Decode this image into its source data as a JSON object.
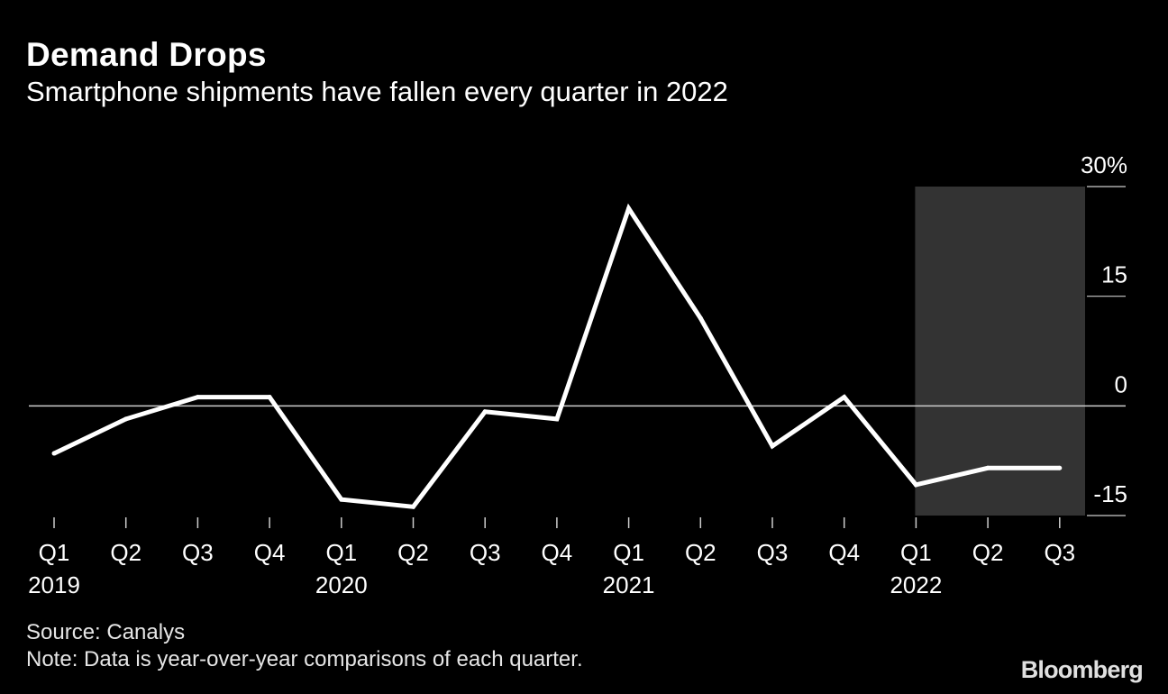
{
  "header": {
    "title": "Demand Drops",
    "subtitle": "Smartphone shipments have fallen every quarter in 2022"
  },
  "footer": {
    "source": "Source: Canalys",
    "note": "Note: Data is year-over-year comparisons of each quarter.",
    "brand": "Bloomberg"
  },
  "colors": {
    "background": "#000000",
    "line": "#ffffff",
    "highlight": "#333333",
    "text": "#ffffff",
    "axis": "#cccccc"
  },
  "chart_data": {
    "type": "line",
    "title": "Demand Drops",
    "subtitle": "Smartphone shipments have fallen every quarter in 2022",
    "xlabel": "",
    "ylabel": "",
    "categories": [
      "Q1",
      "Q2",
      "Q3",
      "Q4",
      "Q1",
      "Q2",
      "Q3",
      "Q4",
      "Q1",
      "Q2",
      "Q3",
      "Q4",
      "Q1",
      "Q2",
      "Q3"
    ],
    "years": [
      {
        "label": "2019",
        "index": 0
      },
      {
        "label": "2020",
        "index": 4
      },
      {
        "label": "2021",
        "index": 8
      },
      {
        "label": "2022",
        "index": 12
      }
    ],
    "series": [
      {
        "name": "Smartphone shipments YoY change",
        "values": [
          -6.5,
          -1.8,
          1.2,
          1.2,
          -12.8,
          -13.8,
          -0.8,
          -1.8,
          27,
          12,
          -5.5,
          1.2,
          -10.8,
          -8.5,
          -8.5
        ]
      }
    ],
    "ylim": [
      -15,
      30
    ],
    "y_ticks": [
      30,
      15,
      0,
      -15
    ],
    "y_tick_labels": [
      "30%",
      "15",
      "0",
      "-15"
    ],
    "zero_line": true,
    "highlight_range": {
      "start_index": 12,
      "end_index": 14,
      "label": "2022"
    },
    "y_axis_side": "right",
    "grid": false
  }
}
